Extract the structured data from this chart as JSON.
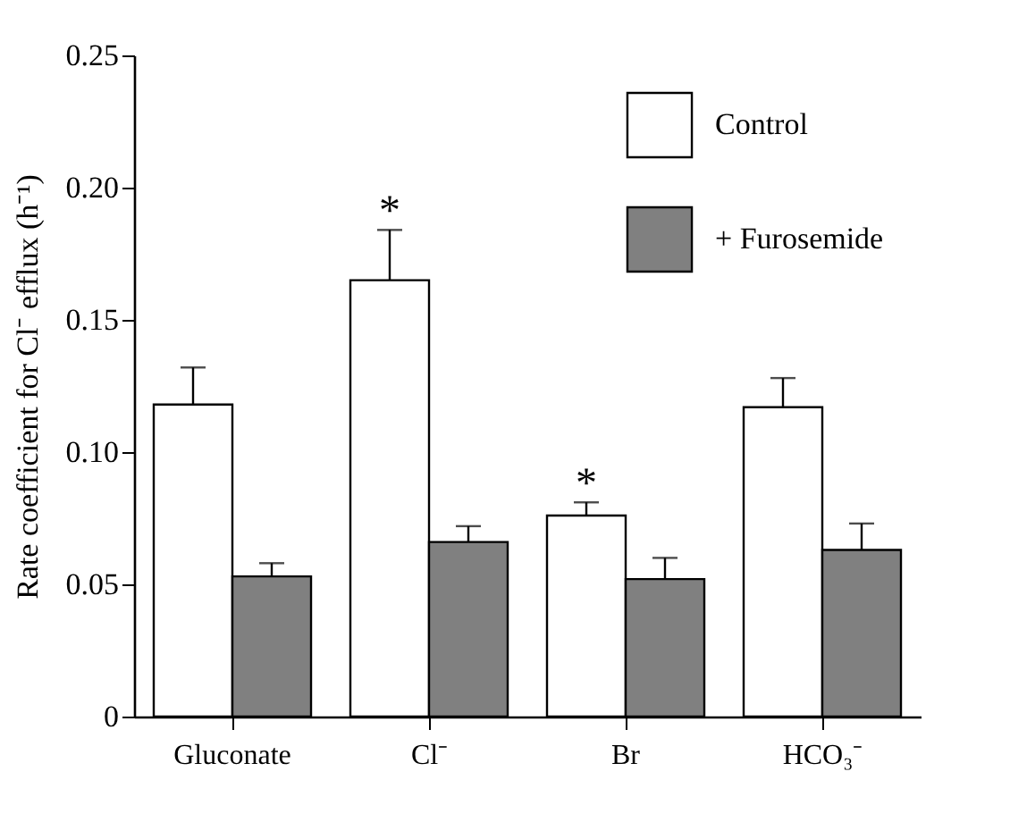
{
  "chart_data": {
    "type": "bar",
    "ylabel": "Rate coefficient for Cl⁻ efflux (h⁻¹)",
    "categories": [
      "Gluconate",
      "Cl⁻",
      "Br",
      "HCO₃⁻"
    ],
    "series": [
      {
        "name": "Control",
        "color": "#ffffff",
        "values": [
          0.118,
          0.165,
          0.076,
          0.117
        ],
        "errors": [
          [
            0.118,
            0.132
          ],
          [
            0.165,
            0.184
          ],
          [
            0.076,
            0.081
          ],
          [
            0.117,
            0.128
          ]
        ]
      },
      {
        "name": "+ Furosemide",
        "color": "#808080",
        "values": [
          0.053,
          0.066,
          0.052,
          0.063
        ],
        "errors": [
          [
            0.053,
            0.058
          ],
          [
            0.066,
            0.072
          ],
          [
            0.052,
            0.06
          ],
          [
            0.063,
            0.073
          ]
        ]
      }
    ],
    "ylim": [
      0,
      0.25
    ],
    "yticks": [
      0,
      0.05,
      {
        "value": 0.1,
        "label": "0.10"
      },
      0.15,
      {
        "value": 0.2,
        "label": "0.20"
      },
      0.25
    ],
    "annotations": [
      {
        "text": "*",
        "x": "Cl⁻",
        "y": 0.165
      },
      {
        "text": "*",
        "x": "Br",
        "y": 0.076
      }
    ],
    "legend": "top right"
  }
}
